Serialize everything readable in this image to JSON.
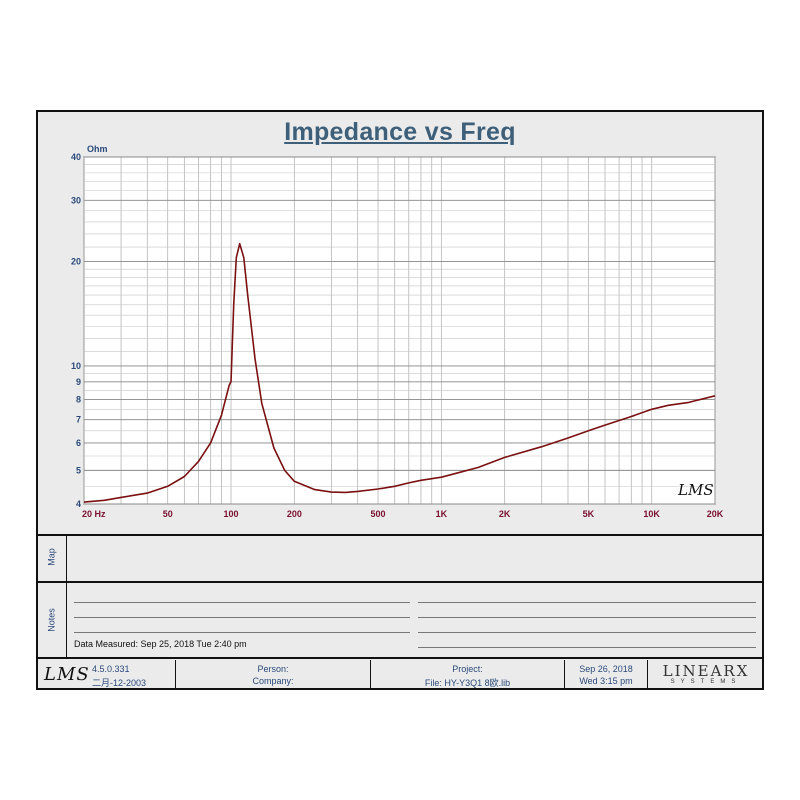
{
  "chart_data": {
    "type": "line",
    "title": "Impedance vs Freq",
    "ylabel_unit": "Ohm",
    "xscale": "log",
    "yscale": "log",
    "xlim": [
      20,
      20000
    ],
    "ylim": [
      4,
      40
    ],
    "grid": true,
    "x_tick_labels": [
      {
        "value": 20,
        "label": "20  Hz"
      },
      {
        "value": 50,
        "label": "50"
      },
      {
        "value": 100,
        "label": "100"
      },
      {
        "value": 200,
        "label": "200"
      },
      {
        "value": 500,
        "label": "500"
      },
      {
        "value": 1000,
        "label": "1K"
      },
      {
        "value": 2000,
        "label": "2K"
      },
      {
        "value": 5000,
        "label": "5K"
      },
      {
        "value": 10000,
        "label": "10K"
      },
      {
        "value": 20000,
        "label": "20K"
      }
    ],
    "y_tick_labels": [
      {
        "value": 4,
        "label": "4"
      },
      {
        "value": 5,
        "label": "5"
      },
      {
        "value": 6,
        "label": "6"
      },
      {
        "value": 7,
        "label": "7"
      },
      {
        "value": 8,
        "label": "8"
      },
      {
        "value": 9,
        "label": "9"
      },
      {
        "value": 10,
        "label": "10"
      },
      {
        "value": 20,
        "label": "20"
      },
      {
        "value": 30,
        "label": "30"
      },
      {
        "value": 40,
        "label": "40"
      }
    ],
    "series": [
      {
        "color": "#7a1010",
        "points": [
          [
            20,
            4.05
          ],
          [
            25,
            4.1
          ],
          [
            30,
            4.18
          ],
          [
            40,
            4.3
          ],
          [
            50,
            4.5
          ],
          [
            60,
            4.8
          ],
          [
            70,
            5.3
          ],
          [
            80,
            6.0
          ],
          [
            90,
            7.2
          ],
          [
            98,
            8.8
          ],
          [
            100,
            9.0
          ],
          [
            103,
            15.0
          ],
          [
            106,
            20.5
          ],
          [
            110,
            22.5
          ],
          [
            115,
            20.5
          ],
          [
            120,
            16.0
          ],
          [
            130,
            10.5
          ],
          [
            140,
            7.8
          ],
          [
            160,
            5.8
          ],
          [
            180,
            5.0
          ],
          [
            200,
            4.65
          ],
          [
            250,
            4.4
          ],
          [
            300,
            4.33
          ],
          [
            350,
            4.32
          ],
          [
            400,
            4.35
          ],
          [
            500,
            4.42
          ],
          [
            600,
            4.5
          ],
          [
            700,
            4.6
          ],
          [
            800,
            4.68
          ],
          [
            1000,
            4.78
          ],
          [
            1200,
            4.92
          ],
          [
            1500,
            5.1
          ],
          [
            2000,
            5.45
          ],
          [
            3000,
            5.85
          ],
          [
            4000,
            6.2
          ],
          [
            5000,
            6.5
          ],
          [
            6000,
            6.75
          ],
          [
            8000,
            7.15
          ],
          [
            10000,
            7.5
          ],
          [
            12000,
            7.7
          ],
          [
            15000,
            7.85
          ],
          [
            20000,
            8.2
          ]
        ]
      }
    ]
  },
  "chart_mark": "LMS",
  "sections": {
    "map_label": "Map",
    "notes_label": "Notes",
    "data_measured": "Data Measured: Sep 25, 2018  Tue  2:40 pm"
  },
  "footer": {
    "logo": "LMS",
    "version": "4.5.0.331",
    "version_date": "二月-12-2003",
    "person_label": "Person:",
    "company_label": "Company:",
    "project_label": "Project:",
    "file_label": "File: HY-Y3Q1 8欧.lib",
    "print_date": "Sep 26, 2018",
    "print_time": "Wed  3:15 pm",
    "brand": "LINEARX",
    "brand_sub": "SYSTEMS"
  }
}
